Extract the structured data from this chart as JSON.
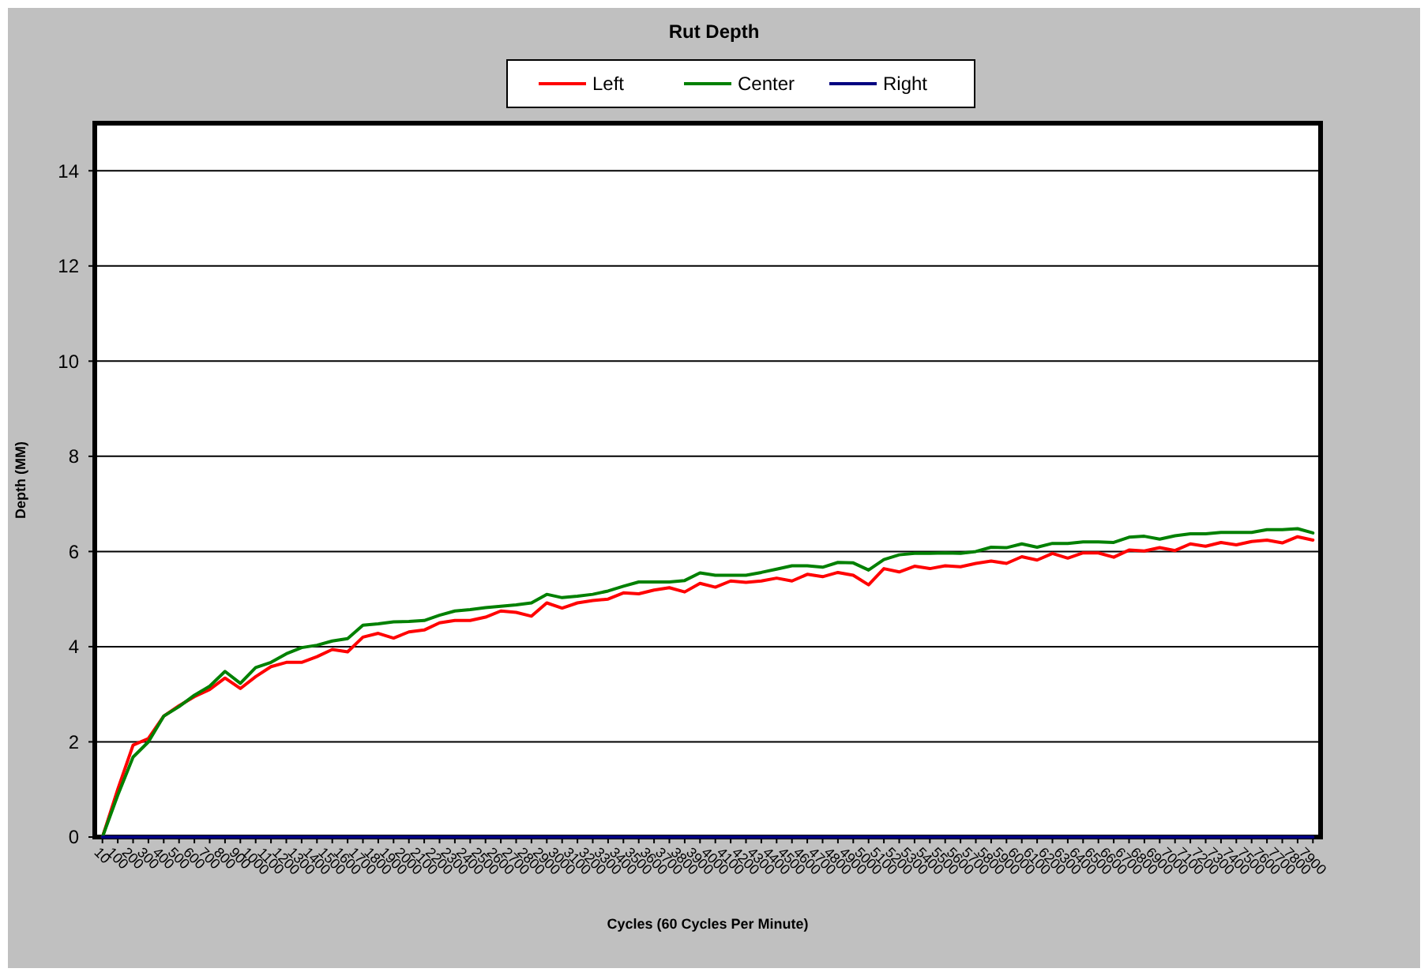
{
  "chart_data": {
    "type": "line",
    "title": "Rut Depth",
    "xlabel": "Cycles (60 Cycles Per Minute)",
    "ylabel": "Depth (MM)",
    "categories": [
      "10",
      "100",
      "200",
      "300",
      "400",
      "500",
      "600",
      "700",
      "800",
      "900",
      "1000",
      "1100",
      "1200",
      "1300",
      "1400",
      "1500",
      "1600",
      "1700",
      "1800",
      "1900",
      "2000",
      "2100",
      "2200",
      "2300",
      "2400",
      "2500",
      "2600",
      "2700",
      "2800",
      "2900",
      "3000",
      "3100",
      "3200",
      "3300",
      "3400",
      "3500",
      "3600",
      "3700",
      "3800",
      "3900",
      "4000",
      "4100",
      "4200",
      "4300",
      "4400",
      "4500",
      "4600",
      "4700",
      "4800",
      "4900",
      "5000",
      "5100",
      "5200",
      "5300",
      "5400",
      "5500",
      "5600",
      "5700",
      "5800",
      "5900",
      "6000",
      "6100",
      "6200",
      "6300",
      "6400",
      "6500",
      "6600",
      "6700",
      "6800",
      "6900",
      "7000",
      "7100",
      "7200",
      "7300",
      "7400",
      "7500",
      "7600",
      "7700",
      "7800",
      "7900"
    ],
    "series": [
      {
        "name": "Left",
        "color": "#ff0000",
        "values": [
          0,
          1.0,
          1.93,
          2.07,
          2.54,
          2.76,
          2.95,
          3.1,
          3.34,
          3.12,
          3.37,
          3.58,
          3.67,
          3.67,
          3.79,
          3.94,
          3.89,
          4.2,
          4.28,
          4.18,
          4.31,
          4.35,
          4.5,
          4.55,
          4.55,
          4.62,
          4.75,
          4.72,
          4.64,
          4.92,
          4.81,
          4.92,
          4.97,
          5.0,
          5.13,
          5.11,
          5.19,
          5.24,
          5.15,
          5.33,
          5.25,
          5.38,
          5.35,
          5.38,
          5.44,
          5.38,
          5.52,
          5.47,
          5.56,
          5.5,
          5.3,
          5.64,
          5.57,
          5.69,
          5.64,
          5.7,
          5.68,
          5.75,
          5.8,
          5.75,
          5.89,
          5.82,
          5.96,
          5.86,
          5.97,
          5.97,
          5.88,
          6.03,
          6.01,
          6.08,
          6.02,
          6.16,
          6.11,
          6.19,
          6.14,
          6.21,
          6.24,
          6.18,
          6.31,
          6.24
        ]
      },
      {
        "name": "Center",
        "color": "#008000",
        "values": [
          0,
          0.88,
          1.68,
          2.0,
          2.54,
          2.74,
          2.98,
          3.17,
          3.48,
          3.23,
          3.56,
          3.67,
          3.85,
          3.98,
          4.03,
          4.12,
          4.17,
          4.45,
          4.48,
          4.52,
          4.53,
          4.55,
          4.66,
          4.75,
          4.78,
          4.82,
          4.85,
          4.88,
          4.92,
          5.1,
          5.03,
          5.06,
          5.1,
          5.17,
          5.27,
          5.36,
          5.36,
          5.36,
          5.39,
          5.55,
          5.5,
          5.5,
          5.5,
          5.56,
          5.63,
          5.7,
          5.7,
          5.67,
          5.77,
          5.76,
          5.61,
          5.83,
          5.93,
          5.96,
          5.96,
          5.97,
          5.96,
          6.0,
          6.09,
          6.08,
          6.16,
          6.09,
          6.17,
          6.17,
          6.2,
          6.2,
          6.19,
          6.3,
          6.32,
          6.26,
          6.33,
          6.37,
          6.37,
          6.4,
          6.4,
          6.4,
          6.46,
          6.46,
          6.48,
          6.39
        ]
      },
      {
        "name": "Right",
        "color": "#000080",
        "values": [
          0,
          0,
          0,
          0,
          0,
          0,
          0,
          0,
          0,
          0,
          0,
          0,
          0,
          0,
          0,
          0,
          0,
          0,
          0,
          0,
          0,
          0,
          0,
          0,
          0,
          0,
          0,
          0,
          0,
          0,
          0,
          0,
          0,
          0,
          0,
          0,
          0,
          0,
          0,
          0,
          0,
          0,
          0,
          0,
          0,
          0,
          0,
          0,
          0,
          0,
          0,
          0,
          0,
          0,
          0,
          0,
          0,
          0,
          0,
          0,
          0,
          0,
          0,
          0,
          0,
          0,
          0,
          0,
          0,
          0,
          0,
          0,
          0,
          0,
          0,
          0,
          0,
          0,
          0,
          0
        ]
      }
    ],
    "ylim": [
      0,
      15
    ],
    "yticks": [
      0,
      2,
      4,
      6,
      8,
      10,
      12,
      14
    ],
    "grid": "y",
    "legend": "top",
    "marker": "none",
    "line_style": "solid"
  }
}
